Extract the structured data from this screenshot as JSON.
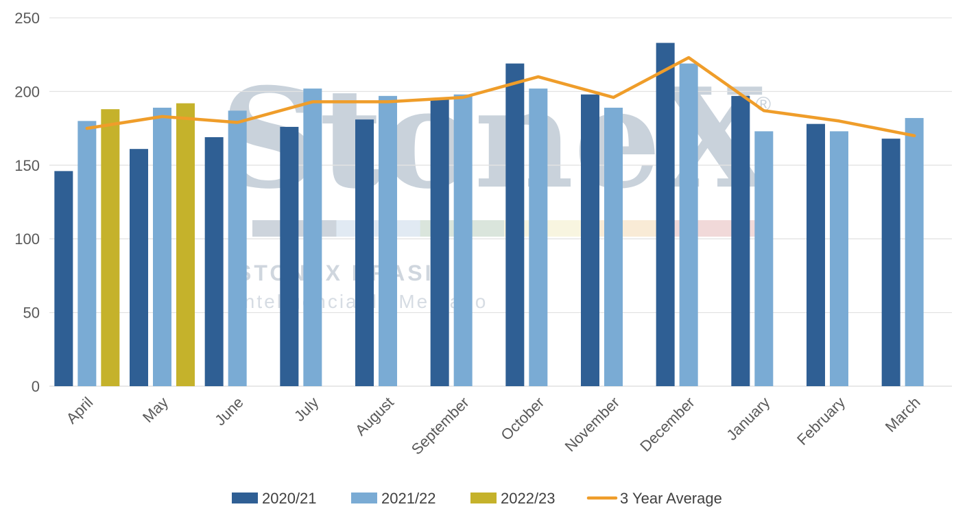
{
  "watermark": {
    "brand": "StoneX",
    "reg_mark": "®",
    "subtitle": "STONEX BRASIL",
    "tagline": "Inteligência de Mercado",
    "band_colors": [
      "#c4ccd6",
      "#dce6f1",
      "#d3e1d6",
      "#f7f3da",
      "#f8e7cf",
      "#efd2d2"
    ]
  },
  "chart_data": {
    "type": "bar",
    "title": "",
    "xlabel": "",
    "ylabel": "",
    "ylim": [
      0,
      250
    ],
    "yticks": [
      0,
      50,
      100,
      150,
      200,
      250
    ],
    "grid": true,
    "legend_position": "bottom",
    "categories": [
      "April",
      "May",
      "June",
      "July",
      "August",
      "September",
      "October",
      "November",
      "December",
      "January",
      "February",
      "March"
    ],
    "series": [
      {
        "name": "2020/21",
        "kind": "bar",
        "color": "#2f5f94",
        "values": [
          146,
          161,
          169,
          176,
          181,
          195,
          219,
          198,
          233,
          197,
          178,
          168
        ]
      },
      {
        "name": "2021/22",
        "kind": "bar",
        "color": "#7aabd4",
        "values": [
          180,
          189,
          187,
          202,
          197,
          198,
          202,
          189,
          219,
          173,
          173,
          182
        ]
      },
      {
        "name": "2022/23",
        "kind": "bar",
        "color": "#c5b22b",
        "values": [
          188,
          192,
          null,
          null,
          null,
          null,
          null,
          null,
          null,
          null,
          null,
          null
        ]
      },
      {
        "name": "3 Year Average",
        "kind": "line",
        "color": "#ef9d2a",
        "values": [
          175,
          183,
          179,
          193,
          193,
          196,
          210,
          196,
          223,
          187,
          180,
          170
        ]
      }
    ]
  }
}
